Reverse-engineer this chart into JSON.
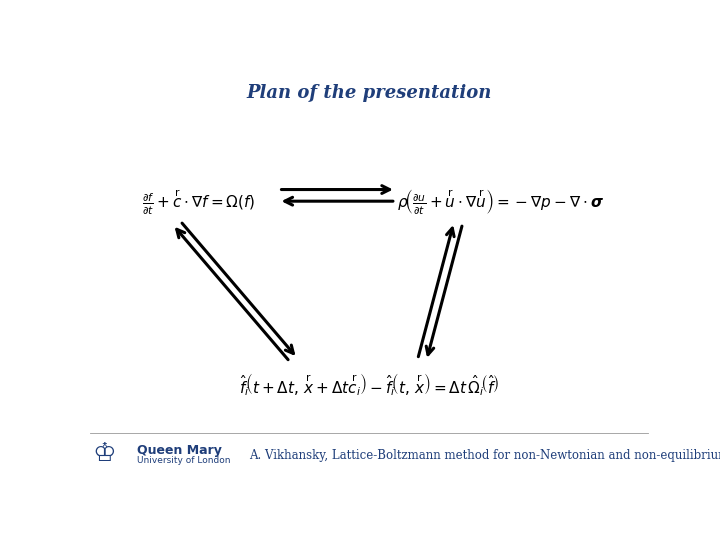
{
  "title": "Plan of the presentation",
  "title_color": "#1F3E7A",
  "title_fontsize": 13,
  "title_style": "italic",
  "title_weight": "bold",
  "bg_color": "#FFFFFF",
  "arrow_color": "#000000",
  "arrow_lw": 2.2,
  "footer_text": "A. Vikhansky, Lattice-Boltzmann method for non-Newtonian and non-equilibrium flows",
  "footer_color": "#1F3E7A",
  "footer_fontsize": 8.5,
  "qm_text": "Queen Mary",
  "qm_sub": "University of London",
  "qm_color": "#1F3E7A"
}
